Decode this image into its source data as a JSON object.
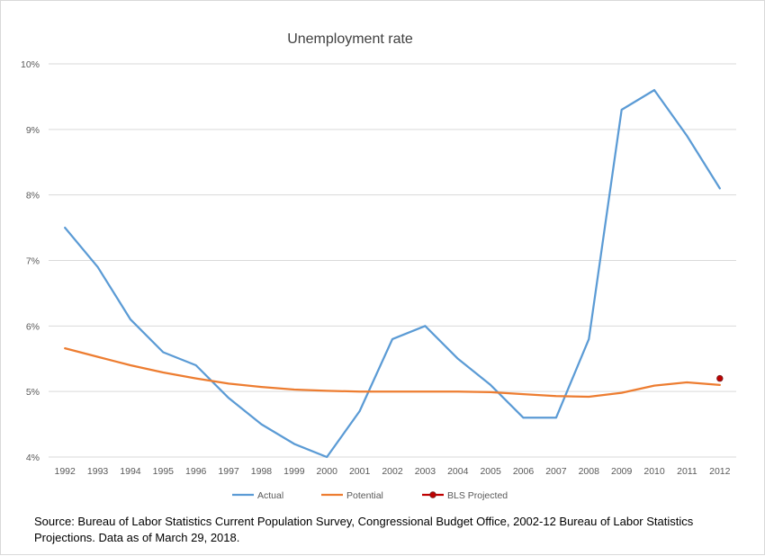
{
  "chart_data": {
    "type": "line",
    "title": "Unemployment rate",
    "xlabel": "",
    "ylabel": "",
    "categories": [
      "1992",
      "1993",
      "1994",
      "1995",
      "1996",
      "1997",
      "1998",
      "1999",
      "2000",
      "2001",
      "2002",
      "2003",
      "2004",
      "2005",
      "2006",
      "2007",
      "2008",
      "2009",
      "2010",
      "2011",
      "2012"
    ],
    "ylim": [
      4,
      10
    ],
    "yticks": [
      4,
      5,
      6,
      7,
      8,
      9,
      10
    ],
    "ytick_labels": [
      "4%",
      "5%",
      "6%",
      "7%",
      "8%",
      "9%",
      "10%"
    ],
    "grid": true,
    "legend_position": "bottom",
    "series": [
      {
        "name": "Actual",
        "color": "#5b9bd5",
        "values": [
          7.5,
          6.9,
          6.1,
          5.6,
          5.4,
          4.9,
          4.5,
          4.2,
          4.0,
          4.7,
          5.8,
          6.0,
          5.5,
          5.1,
          4.6,
          4.6,
          5.8,
          9.3,
          9.6,
          8.9,
          8.1
        ]
      },
      {
        "name": "Potential",
        "color": "#ed7d31",
        "values": [
          5.66,
          5.53,
          5.4,
          5.29,
          5.2,
          5.12,
          5.07,
          5.03,
          5.01,
          5.0,
          5.0,
          5.0,
          5.0,
          4.99,
          4.96,
          4.93,
          4.92,
          4.98,
          5.09,
          5.14,
          5.1
        ]
      },
      {
        "name": "BLS Projected",
        "color": "#c00000",
        "marker": "circle",
        "points": [
          {
            "x": "2012",
            "y": 5.2
          }
        ]
      }
    ]
  },
  "source_note": "Source: Bureau of Labor Statistics Current Population Survey, Congressional Budget Office, 2002-12 Bureau of Labor Statistics Projections. Data as of March 29, 2018."
}
